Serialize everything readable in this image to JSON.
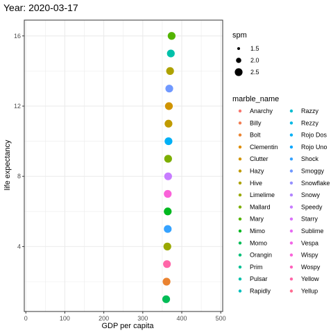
{
  "chart_data": {
    "type": "scatter",
    "title": "Year: 2020-03-17",
    "xlabel": "GDP per capita",
    "ylabel": "life expectancy",
    "xlim": [
      -4,
      505
    ],
    "ylim": [
      0.3,
      16.9
    ],
    "x_ticks": [
      0,
      100,
      200,
      300,
      400,
      500
    ],
    "y_ticks": [
      4,
      8,
      12,
      16
    ],
    "grid": true,
    "background": "#ffffff",
    "grid_color": "#ebebeb",
    "panel_border_color": "#333333",
    "size_legend": {
      "title": "spm",
      "entries": [
        {
          "label": "1.5",
          "value": 1.5
        },
        {
          "label": "2.0",
          "value": 2.0
        },
        {
          "label": "2.5",
          "value": 2.5
        }
      ]
    },
    "color_legend": {
      "title": "marble_name",
      "placement": "right",
      "entries": [
        {
          "name": "Anarchy",
          "color": "#F8766D"
        },
        {
          "name": "Billy",
          "color": "#F27D52"
        },
        {
          "name": "Bolt",
          "color": "#EA8331"
        },
        {
          "name": "Clementin",
          "color": "#DE8C00"
        },
        {
          "name": "Clutter",
          "color": "#D09400"
        },
        {
          "name": "Hazy",
          "color": "#C09B00"
        },
        {
          "name": "Hive",
          "color": "#AEA200"
        },
        {
          "name": "Limelime",
          "color": "#99A800"
        },
        {
          "name": "Mallard",
          "color": "#7CAE00"
        },
        {
          "name": "Mary",
          "color": "#53B400"
        },
        {
          "name": "Mimo",
          "color": "#00B81F"
        },
        {
          "name": "Momo",
          "color": "#00BC56"
        },
        {
          "name": "Orangin",
          "color": "#00BF78"
        },
        {
          "name": "Prim",
          "color": "#00C094"
        },
        {
          "name": "Pulsar",
          "color": "#00C1AA"
        },
        {
          "name": "Rapidly",
          "color": "#00BFBD"
        },
        {
          "name": "Razzy",
          "color": "#00BCD0"
        },
        {
          "name": "Rezzy",
          "color": "#00B8E5"
        },
        {
          "name": "Rojo Dos",
          "color": "#00B0F6"
        },
        {
          "name": "Rojo Uno",
          "color": "#00A5FF"
        },
        {
          "name": "Shock",
          "color": "#35A2FF"
        },
        {
          "name": "Smoggy",
          "color": "#7099FF"
        },
        {
          "name": "Snowflake",
          "color": "#9590FF"
        },
        {
          "name": "Snowy",
          "color": "#B185FF"
        },
        {
          "name": "Speedy",
          "color": "#C77CFF"
        },
        {
          "name": "Starry",
          "color": "#DA71FA"
        },
        {
          "name": "Sublime",
          "color": "#E76BF3"
        },
        {
          "name": "Vespa",
          "color": "#F265E7"
        },
        {
          "name": "Wispy",
          "color": "#FA62D9"
        },
        {
          "name": "Wospy",
          "color": "#FF62BC"
        },
        {
          "name": "Yellow",
          "color": "#FF66A8"
        },
        {
          "name": "Yellup",
          "color": "#FF6C91"
        }
      ]
    },
    "points": [
      {
        "x": 374,
        "y": 16,
        "spm": 2.5,
        "color": "#53B400"
      },
      {
        "x": 372,
        "y": 15,
        "spm": 2.5,
        "color": "#00C1AA"
      },
      {
        "x": 370,
        "y": 14,
        "spm": 2.5,
        "color": "#AEA200"
      },
      {
        "x": 368,
        "y": 13,
        "spm": 2.5,
        "color": "#7099FF"
      },
      {
        "x": 367,
        "y": 12,
        "spm": 2.5,
        "color": "#D09400"
      },
      {
        "x": 366,
        "y": 11,
        "spm": 2.5,
        "color": "#C09B00"
      },
      {
        "x": 366,
        "y": 10,
        "spm": 2.5,
        "color": "#00B0F6"
      },
      {
        "x": 365,
        "y": 9,
        "spm": 2.5,
        "color": "#7CAE00"
      },
      {
        "x": 365,
        "y": 8,
        "spm": 2.5,
        "color": "#C77CFF"
      },
      {
        "x": 364,
        "y": 7,
        "spm": 2.5,
        "color": "#FA62D9"
      },
      {
        "x": 364,
        "y": 6,
        "spm": 2.5,
        "color": "#00B81F"
      },
      {
        "x": 364,
        "y": 5,
        "spm": 2.5,
        "color": "#35A2FF"
      },
      {
        "x": 363,
        "y": 4,
        "spm": 2.5,
        "color": "#99A800"
      },
      {
        "x": 362,
        "y": 3,
        "spm": 2.5,
        "color": "#FF66A8"
      },
      {
        "x": 361,
        "y": 2,
        "spm": 2.5,
        "color": "#EA8331"
      },
      {
        "x": 360,
        "y": 1,
        "spm": 2.5,
        "color": "#00BC56"
      }
    ]
  }
}
